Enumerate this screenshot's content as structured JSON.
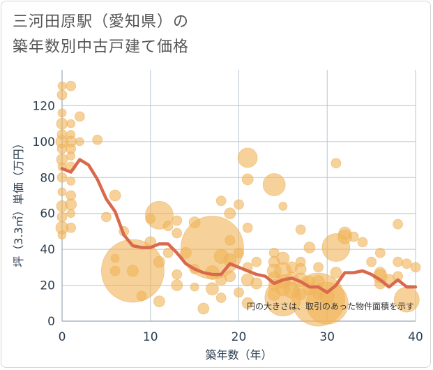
{
  "title": "三河田原駅（愛知県）の\n築年数別中古戸建て価格",
  "colors": {
    "bubble": "#f0b45a",
    "line": "#d9694c",
    "grid": "#b8c5d6",
    "text": "#2b3e50"
  },
  "chart_data": {
    "type": "scatter",
    "xlabel": "築年数（年）",
    "ylabel": "坪（3.3㎡）単価（万円）",
    "xlim": [
      0,
      40
    ],
    "ylim": [
      0,
      140
    ],
    "x_ticks": [
      "0",
      "10",
      "20",
      "30",
      "40"
    ],
    "y_ticks": [
      "0",
      "20",
      "40",
      "60",
      "80",
      "100",
      "120"
    ],
    "annotation": "円の大きさは、取引のあった物件面積を示す",
    "grid": true,
    "series": [
      {
        "type": "bubble",
        "points": [
          [
            0,
            131,
            6
          ],
          [
            0,
            126,
            7
          ],
          [
            0,
            116,
            6
          ],
          [
            0,
            110,
            8
          ],
          [
            0,
            104,
            7
          ],
          [
            0,
            100,
            9
          ],
          [
            0,
            96,
            7
          ],
          [
            0,
            90,
            8
          ],
          [
            0,
            86,
            6
          ],
          [
            0,
            80,
            7
          ],
          [
            0,
            72,
            6
          ],
          [
            0,
            64,
            8
          ],
          [
            0,
            58,
            7
          ],
          [
            0,
            52,
            9
          ],
          [
            0,
            48,
            6
          ],
          [
            1,
            131,
            7
          ],
          [
            1,
            110,
            6
          ],
          [
            1,
            104,
            6
          ],
          [
            1,
            100,
            8
          ],
          [
            1,
            96,
            7
          ],
          [
            1,
            92,
            6
          ],
          [
            1,
            86,
            7
          ],
          [
            1,
            78,
            6
          ],
          [
            1,
            70,
            7
          ],
          [
            1,
            65,
            8
          ],
          [
            1,
            60,
            6
          ],
          [
            1,
            52,
            7
          ],
          [
            2,
            114,
            7
          ],
          [
            2,
            100,
            6
          ],
          [
            4,
            101,
            7
          ],
          [
            5,
            58,
            7
          ],
          [
            6,
            70,
            8
          ],
          [
            6,
            35,
            6
          ],
          [
            6,
            28,
            7
          ],
          [
            7,
            50,
            7
          ],
          [
            8,
            28,
            45
          ],
          [
            8,
            28,
            8
          ],
          [
            9,
            14,
            7
          ],
          [
            10,
            57,
            7
          ],
          [
            10,
            44,
            8
          ],
          [
            11,
            59,
            20
          ],
          [
            11,
            33,
            8
          ],
          [
            11,
            11,
            8
          ],
          [
            12,
            53,
            7
          ],
          [
            12,
            38,
            7
          ],
          [
            13,
            56,
            7
          ],
          [
            13,
            49,
            7
          ],
          [
            13,
            26,
            7
          ],
          [
            13,
            20,
            8
          ],
          [
            14,
            38,
            8
          ],
          [
            15,
            55,
            8
          ],
          [
            15,
            29,
            7
          ],
          [
            15,
            19,
            6
          ],
          [
            16,
            7,
            8
          ],
          [
            17,
            41,
            45
          ],
          [
            17,
            27,
            10
          ],
          [
            17,
            18,
            9
          ],
          [
            18,
            36,
            10
          ],
          [
            18,
            67,
            7
          ],
          [
            18,
            23,
            8
          ],
          [
            18,
            13,
            7
          ],
          [
            19,
            60,
            8
          ],
          [
            19,
            45,
            7
          ],
          [
            19,
            34,
            9
          ],
          [
            19,
            25,
            8
          ],
          [
            20,
            65,
            7
          ],
          [
            20,
            38,
            7
          ],
          [
            20,
            16,
            7
          ],
          [
            21,
            91,
            14
          ],
          [
            21,
            79,
            8
          ],
          [
            21,
            52,
            7
          ],
          [
            21,
            30,
            7
          ],
          [
            21,
            23,
            9
          ],
          [
            21,
            10,
            8
          ],
          [
            22,
            21,
            8
          ],
          [
            22,
            33,
            7
          ],
          [
            24,
            76,
            16
          ],
          [
            24,
            38,
            7
          ],
          [
            24,
            33,
            8
          ],
          [
            24,
            28,
            10
          ],
          [
            24,
            24,
            9
          ],
          [
            24,
            20,
            8
          ],
          [
            24,
            15,
            9
          ],
          [
            25,
            64,
            6
          ],
          [
            25,
            35,
            9
          ],
          [
            25,
            28,
            12
          ],
          [
            25,
            22,
            10
          ],
          [
            25,
            18,
            10
          ],
          [
            25,
            13,
            26
          ],
          [
            26,
            30,
            8
          ],
          [
            26,
            24,
            9
          ],
          [
            26,
            17,
            11
          ],
          [
            27,
            51,
            7
          ],
          [
            27,
            33,
            7
          ],
          [
            27,
            29,
            8
          ],
          [
            27,
            23,
            10
          ],
          [
            27,
            15,
            8
          ],
          [
            28,
            41,
            8
          ],
          [
            28,
            22,
            8
          ],
          [
            28,
            18,
            9
          ],
          [
            29,
            30,
            7
          ],
          [
            29,
            22,
            9
          ],
          [
            29,
            15,
            8
          ],
          [
            29,
            12,
            38
          ],
          [
            30,
            10,
            30
          ],
          [
            30,
            14,
            10
          ],
          [
            31,
            88,
            7
          ],
          [
            31,
            41,
            20
          ],
          [
            31,
            27,
            8
          ],
          [
            32,
            49,
            9
          ],
          [
            32,
            47,
            10
          ],
          [
            33,
            47,
            7
          ],
          [
            34,
            44,
            7
          ],
          [
            35,
            33,
            7
          ],
          [
            36,
            38,
            7
          ],
          [
            36,
            27,
            8
          ],
          [
            36,
            25,
            10
          ],
          [
            36,
            21,
            8
          ],
          [
            37,
            23,
            8
          ],
          [
            38,
            54,
            7
          ],
          [
            38,
            33,
            7
          ],
          [
            38,
            25,
            7
          ],
          [
            39,
            32,
            7
          ],
          [
            39,
            12,
            18
          ],
          [
            40,
            30,
            7
          ]
        ]
      },
      {
        "type": "line",
        "points": [
          [
            0,
            85
          ],
          [
            1,
            83
          ],
          [
            2,
            90
          ],
          [
            3,
            87
          ],
          [
            4,
            79
          ],
          [
            5,
            68
          ],
          [
            6,
            61
          ],
          [
            7,
            48
          ],
          [
            8,
            42
          ],
          [
            9,
            41
          ],
          [
            10,
            41
          ],
          [
            11,
            43
          ],
          [
            12,
            43
          ],
          [
            13,
            38
          ],
          [
            14,
            32
          ],
          [
            15,
            29
          ],
          [
            16,
            27
          ],
          [
            17,
            26
          ],
          [
            18,
            26
          ],
          [
            19,
            32
          ],
          [
            20,
            30
          ],
          [
            21,
            28
          ],
          [
            22,
            26
          ],
          [
            23,
            25
          ],
          [
            24,
            21
          ],
          [
            25,
            23
          ],
          [
            26,
            24
          ],
          [
            27,
            22
          ],
          [
            28,
            19
          ],
          [
            29,
            19
          ],
          [
            30,
            16
          ],
          [
            31,
            20
          ],
          [
            32,
            27
          ],
          [
            33,
            27
          ],
          [
            34,
            28
          ],
          [
            35,
            26
          ],
          [
            36,
            23
          ],
          [
            37,
            19
          ],
          [
            38,
            23
          ],
          [
            39,
            19
          ],
          [
            40,
            19
          ]
        ]
      }
    ]
  }
}
